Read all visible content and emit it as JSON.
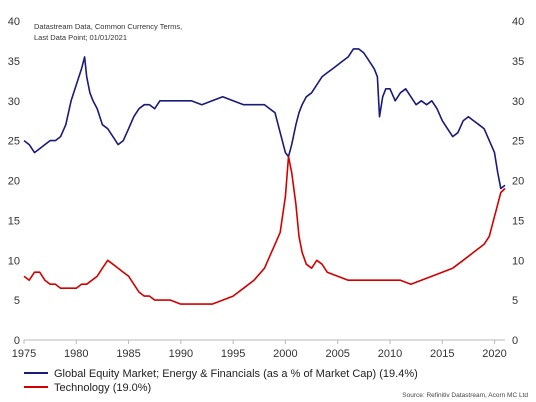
{
  "note": {
    "line1": "Datastream Data, Common Currency Terms,",
    "line2": "Last Data Point; 01/01/2021"
  },
  "source": "Source: Refinitiv Datastream, Acorn MC Ltd",
  "colors": {
    "series_blue": "#1a1a7a",
    "series_red": "#d40000",
    "axis": "#b8b8b8",
    "text": "#333333"
  },
  "chart_data": {
    "type": "line",
    "title": "",
    "xlabel": "",
    "ylabel": "",
    "xlim": [
      1975,
      2021
    ],
    "ylim": [
      0,
      40
    ],
    "x_ticks": [
      "1975",
      "1980",
      "1985",
      "1990",
      "1995",
      "2000",
      "2005",
      "2010",
      "2015",
      "2020"
    ],
    "y_ticks_left": [
      "0",
      "5",
      "10",
      "15",
      "20",
      "25",
      "30",
      "35",
      "40"
    ],
    "y_ticks_right": [
      "0",
      "5",
      "10",
      "15",
      "20",
      "25",
      "30",
      "35",
      "40"
    ],
    "grid": false,
    "legend_position": "bottom-left",
    "series": [
      {
        "name": "Global Equity Market; Energy & Financials (as a % of Market Cap) (19.4%)",
        "color": "#1a1a7a",
        "x": [
          1975,
          1975.5,
          1976,
          1976.5,
          1977,
          1977.5,
          1978,
          1978.5,
          1979,
          1979.5,
          1980,
          1980.5,
          1980.8,
          1981,
          1981.3,
          1981.6,
          1982,
          1982.5,
          1983,
          1983.5,
          1984,
          1984.5,
          1985,
          1985.5,
          1986,
          1986.5,
          1987,
          1987.5,
          1988,
          1989,
          1990,
          1991,
          1992,
          1993,
          1994,
          1995,
          1996,
          1997,
          1998,
          1998.5,
          1999,
          1999.5,
          2000,
          2000.3,
          2000.6,
          2001,
          2001.3,
          2001.6,
          2002,
          2002.5,
          2003,
          2003.5,
          2004,
          2004.5,
          2005,
          2005.5,
          2006,
          2006.5,
          2007,
          2007.5,
          2008,
          2008.5,
          2008.8,
          2009,
          2009.3,
          2009.6,
          2010,
          2010.5,
          2011,
          2011.5,
          2012,
          2012.5,
          2013,
          2013.5,
          2014,
          2014.5,
          2015,
          2015.5,
          2016,
          2016.5,
          2017,
          2017.5,
          2018,
          2018.5,
          2019,
          2019.5,
          2020,
          2020.3,
          2020.6,
          2021
        ],
        "values": [
          25,
          24.5,
          23.5,
          24,
          24.5,
          25,
          25,
          25.5,
          27,
          30,
          32,
          34,
          35.5,
          33,
          31,
          30,
          29,
          27,
          26.5,
          25.5,
          24.5,
          25,
          26.5,
          28,
          29,
          29.5,
          29.5,
          29,
          30,
          30,
          30,
          30,
          29.5,
          30,
          30.5,
          30,
          29.5,
          29.5,
          29.5,
          29,
          28.5,
          26,
          23.5,
          23,
          24.5,
          27,
          28.5,
          29.5,
          30.5,
          31,
          32,
          33,
          33.5,
          34,
          34.5,
          35,
          35.5,
          36.5,
          36.5,
          36,
          35,
          34,
          33,
          28,
          30.5,
          31.5,
          31.5,
          30,
          31,
          31.5,
          30.5,
          29.5,
          30,
          29.5,
          30,
          29,
          27.5,
          26.5,
          25.5,
          26,
          27.5,
          28,
          27.5,
          27,
          26.5,
          25,
          23.5,
          21,
          19,
          19.4
        ]
      },
      {
        "name": "Technology (19.0%)",
        "color": "#d40000",
        "x": [
          1975,
          1975.5,
          1976,
          1976.5,
          1977,
          1977.5,
          1978,
          1978.5,
          1979,
          1979.5,
          1980,
          1980.5,
          1981,
          1981.5,
          1982,
          1982.5,
          1983,
          1983.5,
          1984,
          1984.5,
          1985,
          1985.5,
          1986,
          1986.5,
          1987,
          1987.5,
          1988,
          1989,
          1990,
          1991,
          1992,
          1993,
          1994,
          1995,
          1996,
          1997,
          1998,
          1998.5,
          1999,
          1999.5,
          2000,
          2000.3,
          2000.6,
          2001,
          2001.3,
          2001.6,
          2002,
          2002.5,
          2003,
          2003.5,
          2004,
          2005,
          2006,
          2007,
          2008,
          2009,
          2010,
          2011,
          2012,
          2013,
          2014,
          2015,
          2016,
          2017,
          2018,
          2019,
          2019.5,
          2020,
          2020.3,
          2020.6,
          2021
        ],
        "values": [
          8,
          7.5,
          8.5,
          8.5,
          7.5,
          7,
          7,
          6.5,
          6.5,
          6.5,
          6.5,
          7,
          7,
          7.5,
          8,
          9,
          10,
          9.5,
          9,
          8.5,
          8,
          7,
          6,
          5.5,
          5.5,
          5,
          5,
          5,
          4.5,
          4.5,
          4.5,
          4.5,
          5,
          5.5,
          6.5,
          7.5,
          9,
          10.5,
          12,
          13.5,
          18,
          23,
          21,
          17,
          13,
          11,
          9.5,
          9,
          10,
          9.5,
          8.5,
          8,
          7.5,
          7.5,
          7.5,
          7.5,
          7.5,
          7.5,
          7,
          7.5,
          8,
          8.5,
          9,
          10,
          11,
          12,
          13,
          15.5,
          17,
          18.5,
          19
        ]
      }
    ]
  }
}
